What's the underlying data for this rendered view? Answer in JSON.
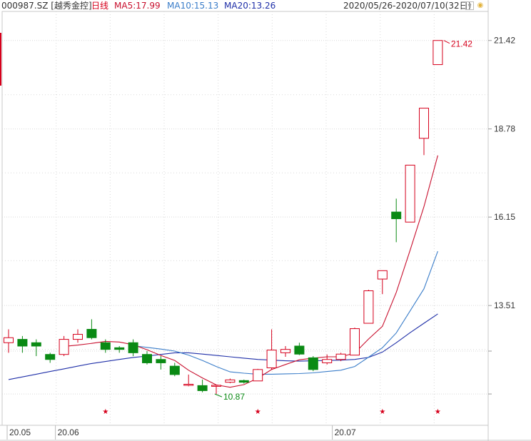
{
  "header": {
    "stock": "000987.SZ [越秀金控]",
    "period": "日线",
    "ma5": "MA5:17.99",
    "ma10": "MA10:15.13",
    "ma20": "MA20:13.26",
    "range": "2020/05/26-2020/07/10(32日)"
  },
  "colors": {
    "up": "#d6001c",
    "down": "#0a8a14",
    "ma5": "#c8102e",
    "ma10": "#3a7dc9",
    "ma20": "#1f2fa8",
    "grid": "#d9d9d9"
  },
  "chart_data": {
    "type": "candlestick",
    "ylim": [
      11.0,
      22.0
    ],
    "yticks": [
      21.42,
      18.78,
      16.15,
      13.51
    ],
    "xlabels": [
      "20.05",
      "20.06",
      "20.07"
    ],
    "max_label": "21.42",
    "min_label": "10.87",
    "candles": [
      [
        12.4,
        12.55,
        12.1,
        12.8
      ],
      [
        12.5,
        12.3,
        12.1,
        12.6
      ],
      [
        12.4,
        12.3,
        12.0,
        12.5
      ],
      [
        12.05,
        11.9,
        11.8,
        12.1
      ],
      [
        12.05,
        12.5,
        12.0,
        12.6
      ],
      [
        12.5,
        12.65,
        12.4,
        12.8
      ],
      [
        12.8,
        12.55,
        12.5,
        13.1
      ],
      [
        12.4,
        12.2,
        12.1,
        12.5
      ],
      [
        12.25,
        12.2,
        12.1,
        12.3
      ],
      [
        12.4,
        12.1,
        12.0,
        12.5
      ],
      [
        12.05,
        11.8,
        11.75,
        12.15
      ],
      [
        11.9,
        11.8,
        11.6,
        12.0
      ],
      [
        11.7,
        11.45,
        11.4,
        11.8
      ],
      [
        11.15,
        11.16,
        11.1,
        11.45
      ],
      [
        11.12,
        10.97,
        10.92,
        11.3
      ],
      [
        11.1,
        11.13,
        10.87,
        11.15
      ],
      [
        11.22,
        11.29,
        11.19,
        11.33
      ],
      [
        11.27,
        11.22,
        11.18,
        11.3
      ],
      [
        11.26,
        11.6,
        11.26,
        11.62
      ],
      [
        11.65,
        12.18,
        11.6,
        12.8
      ],
      [
        12.1,
        12.2,
        11.98,
        12.3
      ],
      [
        12.3,
        12.06,
        12.03,
        12.4
      ],
      [
        11.95,
        11.6,
        11.55,
        12.0
      ],
      [
        11.8,
        11.9,
        11.75,
        12.05
      ],
      [
        11.9,
        12.06,
        11.85,
        12.1
      ],
      [
        12.03,
        12.82,
        12.03,
        12.85
      ],
      [
        12.98,
        13.95,
        12.98,
        13.98
      ],
      [
        14.3,
        14.55,
        13.85,
        14.55
      ],
      [
        16.3,
        16.1,
        15.4,
        16.7
      ],
      [
        16.0,
        17.7,
        16.0,
        17.7
      ],
      [
        18.5,
        19.4,
        18.0,
        19.4
      ],
      [
        20.7,
        21.42,
        20.7,
        21.42
      ]
    ],
    "ma5": [
      null,
      null,
      null,
      null,
      12.29,
      12.33,
      12.38,
      12.44,
      12.42,
      12.34,
      12.19,
      12.02,
      11.87,
      11.58,
      11.35,
      11.14,
      11.07,
      11.15,
      11.34,
      11.6,
      11.75,
      11.89,
      11.94,
      11.98,
      11.98,
      12.09,
      12.51,
      12.89,
      13.9,
      15.16,
      16.46,
      17.99
    ],
    "ma10": [
      null,
      null,
      null,
      null,
      null,
      null,
      null,
      null,
      null,
      12.31,
      12.26,
      12.21,
      12.15,
      12.03,
      11.87,
      11.69,
      11.53,
      11.49,
      11.46,
      11.46,
      11.47,
      11.48,
      11.5,
      11.54,
      11.58,
      11.69,
      11.97,
      12.25,
      12.69,
      13.35,
      14.01,
      15.13
    ],
    "ma20": [
      11.3,
      11.38,
      11.46,
      11.54,
      11.62,
      11.7,
      11.78,
      11.84,
      11.9,
      11.96,
      12.0,
      12.05,
      12.1,
      12.1,
      12.06,
      12.02,
      11.98,
      11.94,
      11.9,
      11.88,
      11.86,
      11.85,
      11.86,
      11.87,
      11.88,
      11.9,
      11.96,
      12.12,
      12.4,
      12.7,
      12.98,
      13.26
    ],
    "markers": [
      7,
      18,
      27,
      31
    ],
    "xlabel_positions": [
      0,
      4,
      24
    ]
  }
}
